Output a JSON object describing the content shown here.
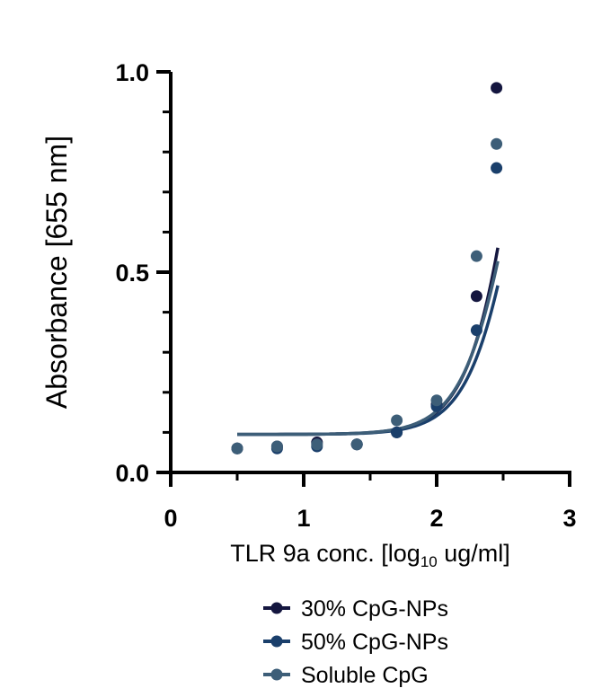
{
  "chart_data": {
    "type": "scatter",
    "xlabel_main": "TLR 9a conc. [log",
    "xlabel_sub": "10",
    "xlabel_tail": " ug/ml]",
    "ylabel": "Absorbance [655 nm]",
    "xlim": [
      0,
      3
    ],
    "ylim": [
      0,
      1.0
    ],
    "x_ticks": [
      "0",
      "1",
      "2",
      "3"
    ],
    "y_ticks": [
      "0.0",
      "0.5",
      "1.0"
    ],
    "grid": false,
    "legend_position": "bottom",
    "series": [
      {
        "name": "30% CpG-NPs",
        "color": "#14163f",
        "points": [
          [
            0.5,
            0.06
          ],
          [
            0.8,
            0.065
          ],
          [
            1.1,
            0.075
          ],
          [
            1.4,
            0.07
          ],
          [
            1.7,
            0.1
          ],
          [
            2.0,
            0.17
          ],
          [
            2.3,
            0.44
          ],
          [
            2.45,
            0.96
          ]
        ]
      },
      {
        "name": "50% CpG-NPs",
        "color": "#1a3f6b",
        "points": [
          [
            0.5,
            0.06
          ],
          [
            0.8,
            0.06
          ],
          [
            1.1,
            0.065
          ],
          [
            1.4,
            0.07
          ],
          [
            1.7,
            0.1
          ],
          [
            2.0,
            0.165
          ],
          [
            2.3,
            0.355
          ],
          [
            2.45,
            0.76
          ]
        ]
      },
      {
        "name": "Soluble CpG",
        "color": "#3d5e78",
        "points": [
          [
            0.5,
            0.06
          ],
          [
            0.8,
            0.065
          ],
          [
            1.1,
            0.07
          ],
          [
            1.4,
            0.07
          ],
          [
            1.7,
            0.13
          ],
          [
            2.0,
            0.18
          ],
          [
            2.3,
            0.54
          ],
          [
            2.45,
            0.82
          ]
        ]
      }
    ],
    "fit_curves": [
      {
        "color": "#14163f",
        "bottom": 0.095,
        "x50": 2.72,
        "hill": 2.2,
        "top": 2.3
      },
      {
        "color": "#1a3f6b",
        "bottom": 0.095,
        "x50": 2.68,
        "hill": 2.2,
        "top": 1.6
      },
      {
        "color": "#3d5e78",
        "bottom": 0.095,
        "x50": 2.62,
        "hill": 2.2,
        "top": 1.5
      }
    ]
  }
}
